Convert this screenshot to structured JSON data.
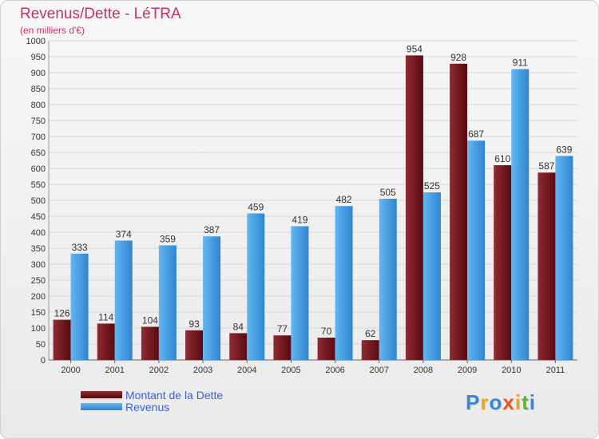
{
  "chart_data": {
    "type": "bar",
    "title": "Revenus/Dette - LéTRA",
    "subtitle": "(en milliers d'€)",
    "categories": [
      "2000",
      "2001",
      "2002",
      "2003",
      "2004",
      "2005",
      "2006",
      "2007",
      "2008",
      "2009",
      "2010",
      "2011"
    ],
    "series": [
      {
        "name": "Montant de la Dette",
        "color": "#6b0f16",
        "values": [
          126,
          114,
          104,
          93,
          84,
          77,
          70,
          62,
          954,
          928,
          610,
          587
        ]
      },
      {
        "name": "Revenus",
        "color": "#4aa3e6",
        "values": [
          333,
          374,
          359,
          387,
          459,
          419,
          482,
          505,
          525,
          687,
          911,
          639
        ]
      }
    ],
    "ylim": [
      0,
      1000
    ],
    "yticks": [
      0,
      50,
      100,
      150,
      200,
      250,
      300,
      350,
      400,
      450,
      500,
      550,
      600,
      650,
      700,
      750,
      800,
      850,
      900,
      950,
      1000
    ],
    "grid": true,
    "legend_position": "bottom-left"
  },
  "logo": {
    "letters": [
      "P",
      "r",
      "o",
      "x",
      "i",
      "t",
      "i"
    ],
    "colors": [
      "#3a86d6",
      "#f0a21e",
      "#3a86d6",
      "#e6551f",
      "#f0a21e",
      "#5bb52f",
      "#3a86d6"
    ]
  }
}
